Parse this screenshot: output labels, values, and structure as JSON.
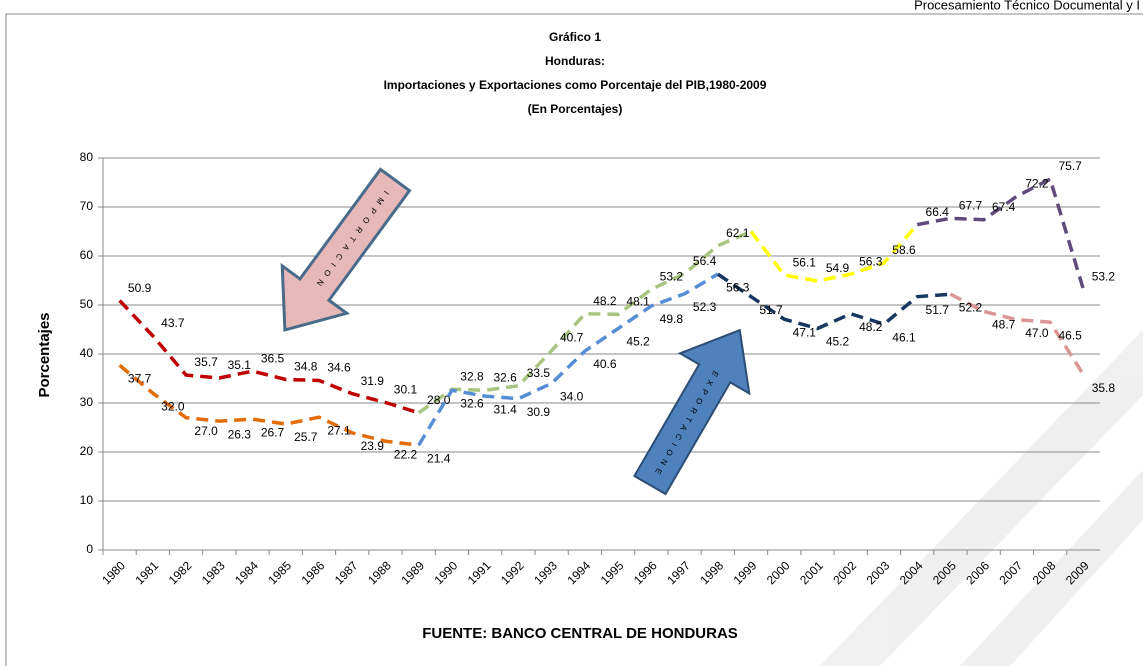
{
  "header": "Procesamiento Técnico Documental y I",
  "chart_data": {
    "type": "line",
    "title": [
      "Gráfico 1",
      "Honduras:",
      "Importaciones y Exportaciones como Porcentaje del PIB,1980-2009",
      "(En Porcentajes)"
    ],
    "y_label": "Porcentajes",
    "source": "FUENTE: BANCO CENTRAL DE HONDURAS",
    "annotations": [
      "IMPORTACION",
      "EXPORTACIONE"
    ],
    "categories": [
      "1980",
      "1981",
      "1982",
      "1983",
      "1984",
      "1985",
      "1986",
      "1987",
      "1988",
      "1989",
      "1990",
      "1991",
      "1992",
      "1993",
      "1994",
      "1995",
      "1996",
      "1997",
      "1998",
      "1999",
      "2000",
      "2001",
      "2002",
      "2003",
      "2004",
      "2005",
      "2006",
      "2007",
      "2008",
      "2009"
    ],
    "ylim": [
      0,
      80
    ],
    "yticks": [
      0,
      10,
      20,
      30,
      40,
      50,
      60,
      70,
      80
    ],
    "grid": true,
    "series": [
      {
        "values": [
          50.9,
          43.7,
          35.7,
          35.1,
          36.5,
          34.8,
          34.6,
          31.9,
          30.1,
          28.0,
          32.8,
          32.6,
          33.5,
          40.7,
          48.2,
          48.1,
          53.2,
          56.4,
          62.1,
          65,
          56.1,
          54.9,
          56.3,
          58.6,
          66.4,
          67.7,
          67.4,
          72.2,
          75.7,
          53.2
        ],
        "value_labels": [
          "50.9",
          "43.7",
          "35.7",
          "35.1",
          "36.5",
          "34.8",
          "34.6",
          "31.9",
          "30.1",
          "28.0",
          "32.8",
          "32.6",
          "33.5",
          "40.7",
          "48.2",
          "48.1",
          "53.2",
          "56.4",
          "62.1",
          null,
          "56.1",
          "54.9",
          "56.3",
          "58.6",
          "66.4",
          "67.7",
          "67.4",
          "72.2",
          "75.7",
          "53.2"
        ],
        "segments": [
          {
            "from": "1980",
            "to": "1989",
            "color": "#c00000"
          },
          {
            "from": "1989",
            "to": "1999",
            "color": "#a9c47f"
          },
          {
            "from": "1999",
            "to": "2004",
            "color": "#ffff00"
          },
          {
            "from": "2004",
            "to": "2009",
            "color": "#604a7b"
          }
        ]
      },
      {
        "values": [
          37.7,
          32.0,
          27.0,
          26.3,
          26.7,
          25.7,
          27.1,
          23.9,
          22.2,
          21.4,
          32.6,
          31.4,
          30.9,
          34.0,
          40.6,
          45.2,
          49.8,
          52.3,
          56.3,
          51.7,
          47.1,
          45.2,
          48.2,
          46.1,
          51.7,
          52.2,
          48.7,
          47.0,
          46.5,
          35.8
        ],
        "value_labels": [
          "37.7",
          "32.0",
          "27.0",
          "26.3",
          "26.7",
          "25.7",
          "27.1",
          "23.9",
          "22.2",
          "21.4",
          "32.6",
          "31.4",
          "30.9",
          "34.0",
          "40.6",
          "45.2",
          "49.8",
          "52.3",
          "56.3",
          "51.7",
          "47.1",
          "45.2",
          "48.2",
          "46.1",
          "51.7",
          "52.2",
          "48.7",
          "47.0",
          "46.5",
          "35.8"
        ],
        "segments": [
          {
            "from": "1980",
            "to": "1989",
            "color": "#e36c09"
          },
          {
            "from": "1989",
            "to": "1998",
            "color": "#558ed5"
          },
          {
            "from": "1998",
            "to": "2005",
            "color": "#17375e"
          },
          {
            "from": "2005",
            "to": "2009",
            "color": "#d99694"
          }
        ]
      }
    ]
  }
}
